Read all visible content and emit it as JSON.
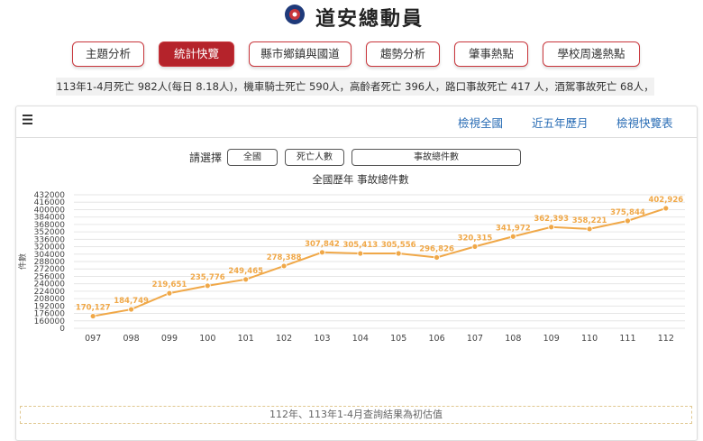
{
  "header": {
    "title": "道安總動員"
  },
  "nav": [
    "主題分析",
    "統計快覽",
    "縣市鄉鎮與國道",
    "趨勢分析",
    "肇事熱點",
    "學校周邊熱點"
  ],
  "ticker": "113年1-4月死亡 982人(每日 8.18人)，機車騎士死亡 590人，高齡者死亡 396人，路口事故死亡 417 人，酒駕事故死亡 68人，",
  "toolbar": [
    "檢視全國",
    "近五年歷月",
    "檢視快覽表"
  ],
  "filters": {
    "label": "請選擇",
    "selects": [
      "全國",
      "死亡人數",
      "事故總件數"
    ]
  },
  "chart_data": {
    "type": "line",
    "title": "全國歷年 事故總件數",
    "y_label": "件數",
    "color": "#f0a848",
    "categories": [
      "097",
      "098",
      "099",
      "100",
      "101",
      "102",
      "103",
      "104",
      "105",
      "106",
      "107",
      "108",
      "109",
      "110",
      "111",
      "112"
    ],
    "values": [
      170127,
      184749,
      219651,
      235776,
      249465,
      278388,
      307842,
      305413,
      305556,
      296826,
      320315,
      341972,
      362393,
      358221,
      375844,
      402926
    ],
    "value_labels": [
      "170,127",
      "184,749",
      "219,651",
      "235,776",
      "249,465",
      "278,388",
      "307,842",
      "305,413",
      "305,556",
      "296,826",
      "320,315",
      "341,972",
      "362,393",
      "358,221",
      "375,844",
      "402,926"
    ],
    "ylim": [
      0,
      432000
    ],
    "yticks": [
      0,
      160000,
      176000,
      192000,
      208000,
      224000,
      240000,
      256000,
      272000,
      288000,
      304000,
      320000,
      336000,
      352000,
      368000,
      384000,
      400000,
      416000,
      432000
    ],
    "grid": true
  },
  "note": "112年、113年1-4月查詢結果為初估值"
}
